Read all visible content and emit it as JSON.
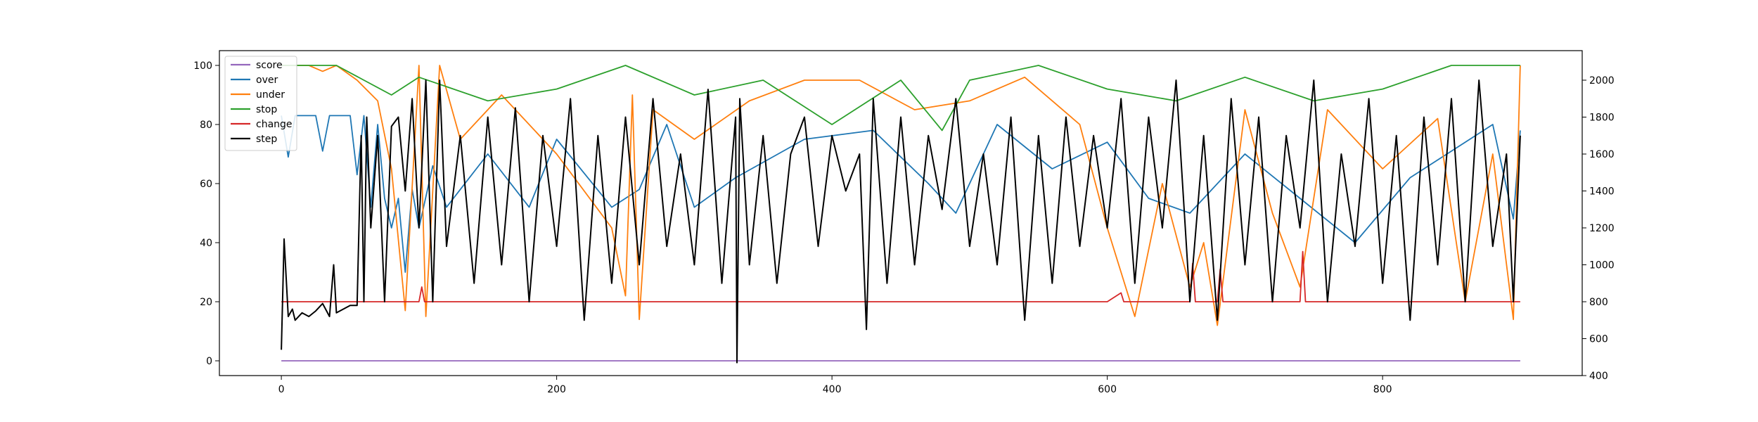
{
  "chart_data": {
    "type": "line",
    "title": "",
    "xlabel": "",
    "ylabel": "",
    "xlim": [
      -45,
      945
    ],
    "ylim_left": [
      -5,
      105
    ],
    "ylim_right": [
      400,
      2160
    ],
    "x_ticks": [
      0,
      200,
      400,
      600,
      800
    ],
    "y_ticks_left": [
      0,
      20,
      40,
      60,
      80,
      100
    ],
    "y_ticks_right": [
      400,
      600,
      800,
      1000,
      1200,
      1400,
      1600,
      1800,
      2000
    ],
    "x_range": [
      0,
      900
    ],
    "grid": false,
    "legend_position": "top-left",
    "series": [
      {
        "name": "score",
        "axis": "left",
        "color": "#9467bd",
        "note": "constant",
        "points": [
          [
            0,
            0
          ],
          [
            900,
            0
          ]
        ]
      },
      {
        "name": "over",
        "axis": "left",
        "color": "#1f77b4",
        "points": [
          [
            0,
            83
          ],
          [
            5,
            69
          ],
          [
            10,
            83
          ],
          [
            20,
            83
          ],
          [
            25,
            83
          ],
          [
            30,
            71
          ],
          [
            35,
            83
          ],
          [
            45,
            83
          ],
          [
            50,
            83
          ],
          [
            55,
            63
          ],
          [
            60,
            83
          ],
          [
            65,
            52
          ],
          [
            70,
            80
          ],
          [
            75,
            55
          ],
          [
            80,
            45
          ],
          [
            85,
            55
          ],
          [
            90,
            30
          ],
          [
            95,
            58
          ],
          [
            100,
            45
          ],
          [
            110,
            66
          ],
          [
            120,
            52
          ],
          [
            150,
            70
          ],
          [
            180,
            52
          ],
          [
            200,
            75
          ],
          [
            240,
            52
          ],
          [
            260,
            58
          ],
          [
            280,
            80
          ],
          [
            300,
            52
          ],
          [
            330,
            62
          ],
          [
            380,
            75
          ],
          [
            430,
            78
          ],
          [
            470,
            60
          ],
          [
            490,
            50
          ],
          [
            520,
            80
          ],
          [
            560,
            65
          ],
          [
            600,
            74
          ],
          [
            630,
            55
          ],
          [
            660,
            50
          ],
          [
            700,
            70
          ],
          [
            740,
            55
          ],
          [
            780,
            40
          ],
          [
            820,
            62
          ],
          [
            860,
            74
          ],
          [
            880,
            80
          ],
          [
            895,
            48
          ],
          [
            900,
            78
          ]
        ]
      },
      {
        "name": "under",
        "axis": "left",
        "color": "#ff7f0e",
        "points": [
          [
            0,
            100
          ],
          [
            20,
            100
          ],
          [
            30,
            98
          ],
          [
            40,
            100
          ],
          [
            55,
            95
          ],
          [
            70,
            88
          ],
          [
            80,
            65
          ],
          [
            90,
            17
          ],
          [
            100,
            100
          ],
          [
            105,
            15
          ],
          [
            115,
            100
          ],
          [
            130,
            75
          ],
          [
            160,
            90
          ],
          [
            200,
            70
          ],
          [
            240,
            45
          ],
          [
            250,
            22
          ],
          [
            255,
            90
          ],
          [
            260,
            14
          ],
          [
            270,
            85
          ],
          [
            300,
            75
          ],
          [
            340,
            88
          ],
          [
            380,
            95
          ],
          [
            420,
            95
          ],
          [
            460,
            85
          ],
          [
            500,
            88
          ],
          [
            540,
            96
          ],
          [
            580,
            80
          ],
          [
            600,
            45
          ],
          [
            620,
            15
          ],
          [
            640,
            60
          ],
          [
            660,
            25
          ],
          [
            670,
            40
          ],
          [
            680,
            12
          ],
          [
            700,
            85
          ],
          [
            720,
            50
          ],
          [
            740,
            25
          ],
          [
            760,
            85
          ],
          [
            800,
            65
          ],
          [
            840,
            82
          ],
          [
            860,
            20
          ],
          [
            880,
            70
          ],
          [
            895,
            14
          ],
          [
            900,
            100
          ]
        ]
      },
      {
        "name": "stop",
        "axis": "left",
        "color": "#2ca02c",
        "points": [
          [
            0,
            100
          ],
          [
            40,
            100
          ],
          [
            60,
            95
          ],
          [
            80,
            90
          ],
          [
            100,
            96
          ],
          [
            150,
            88
          ],
          [
            200,
            92
          ],
          [
            250,
            100
          ],
          [
            300,
            90
          ],
          [
            350,
            95
          ],
          [
            400,
            80
          ],
          [
            450,
            95
          ],
          [
            480,
            78
          ],
          [
            500,
            95
          ],
          [
            550,
            100
          ],
          [
            600,
            92
          ],
          [
            650,
            88
          ],
          [
            700,
            96
          ],
          [
            750,
            88
          ],
          [
            800,
            92
          ],
          [
            850,
            100
          ],
          [
            900,
            100
          ]
        ]
      },
      {
        "name": "change",
        "axis": "left",
        "color": "#d62728",
        "points": [
          [
            0,
            20
          ],
          [
            100,
            20
          ],
          [
            102,
            25
          ],
          [
            104,
            20
          ],
          [
            300,
            20
          ],
          [
            600,
            20
          ],
          [
            610,
            23
          ],
          [
            612,
            20
          ],
          [
            660,
            20
          ],
          [
            662,
            33
          ],
          [
            664,
            20
          ],
          [
            680,
            20
          ],
          [
            682,
            31
          ],
          [
            684,
            20
          ],
          [
            740,
            20
          ],
          [
            742,
            37
          ],
          [
            744,
            20
          ],
          [
            900,
            20
          ]
        ]
      },
      {
        "name": "step",
        "axis": "right",
        "color": "#000000",
        "points": [
          [
            0,
            540
          ],
          [
            2,
            1140
          ],
          [
            5,
            720
          ],
          [
            8,
            760
          ],
          [
            10,
            700
          ],
          [
            15,
            740
          ],
          [
            20,
            720
          ],
          [
            25,
            750
          ],
          [
            30,
            790
          ],
          [
            35,
            720
          ],
          [
            38,
            1000
          ],
          [
            40,
            740
          ],
          [
            45,
            760
          ],
          [
            50,
            780
          ],
          [
            55,
            780
          ],
          [
            58,
            1700
          ],
          [
            60,
            800
          ],
          [
            62,
            1800
          ],
          [
            65,
            1200
          ],
          [
            70,
            1700
          ],
          [
            75,
            800
          ],
          [
            80,
            1750
          ],
          [
            85,
            1800
          ],
          [
            90,
            1400
          ],
          [
            95,
            1900
          ],
          [
            100,
            1200
          ],
          [
            105,
            2000
          ],
          [
            110,
            800
          ],
          [
            115,
            2000
          ],
          [
            120,
            1100
          ],
          [
            130,
            1700
          ],
          [
            140,
            900
          ],
          [
            150,
            1800
          ],
          [
            160,
            1000
          ],
          [
            170,
            1850
          ],
          [
            180,
            800
          ],
          [
            190,
            1700
          ],
          [
            200,
            1100
          ],
          [
            210,
            1900
          ],
          [
            220,
            700
          ],
          [
            230,
            1700
          ],
          [
            240,
            900
          ],
          [
            250,
            1800
          ],
          [
            260,
            1000
          ],
          [
            270,
            1900
          ],
          [
            280,
            1100
          ],
          [
            290,
            1600
          ],
          [
            300,
            1000
          ],
          [
            310,
            1950
          ],
          [
            320,
            900
          ],
          [
            330,
            1800
          ],
          [
            331,
            470
          ],
          [
            333,
            1900
          ],
          [
            340,
            1000
          ],
          [
            350,
            1700
          ],
          [
            360,
            900
          ],
          [
            370,
            1600
          ],
          [
            380,
            1800
          ],
          [
            390,
            1100
          ],
          [
            400,
            1700
          ],
          [
            410,
            1400
          ],
          [
            420,
            1600
          ],
          [
            425,
            650
          ],
          [
            430,
            1900
          ],
          [
            440,
            900
          ],
          [
            450,
            1800
          ],
          [
            460,
            1000
          ],
          [
            470,
            1700
          ],
          [
            480,
            1300
          ],
          [
            490,
            1900
          ],
          [
            500,
            1100
          ],
          [
            510,
            1600
          ],
          [
            520,
            1000
          ],
          [
            530,
            1800
          ],
          [
            540,
            700
          ],
          [
            550,
            1700
          ],
          [
            560,
            900
          ],
          [
            570,
            1800
          ],
          [
            580,
            1100
          ],
          [
            590,
            1700
          ],
          [
            600,
            1200
          ],
          [
            610,
            1900
          ],
          [
            620,
            900
          ],
          [
            630,
            1800
          ],
          [
            640,
            1200
          ],
          [
            650,
            2000
          ],
          [
            660,
            800
          ],
          [
            670,
            1700
          ],
          [
            680,
            700
          ],
          [
            690,
            1900
          ],
          [
            700,
            1000
          ],
          [
            710,
            1800
          ],
          [
            720,
            800
          ],
          [
            730,
            1700
          ],
          [
            740,
            1200
          ],
          [
            750,
            2000
          ],
          [
            760,
            800
          ],
          [
            770,
            1600
          ],
          [
            780,
            1100
          ],
          [
            790,
            1900
          ],
          [
            800,
            900
          ],
          [
            810,
            1700
          ],
          [
            820,
            700
          ],
          [
            830,
            1800
          ],
          [
            840,
            1000
          ],
          [
            850,
            1900
          ],
          [
            860,
            800
          ],
          [
            870,
            2000
          ],
          [
            880,
            1100
          ],
          [
            890,
            1600
          ],
          [
            895,
            800
          ],
          [
            900,
            1700
          ]
        ]
      }
    ]
  }
}
